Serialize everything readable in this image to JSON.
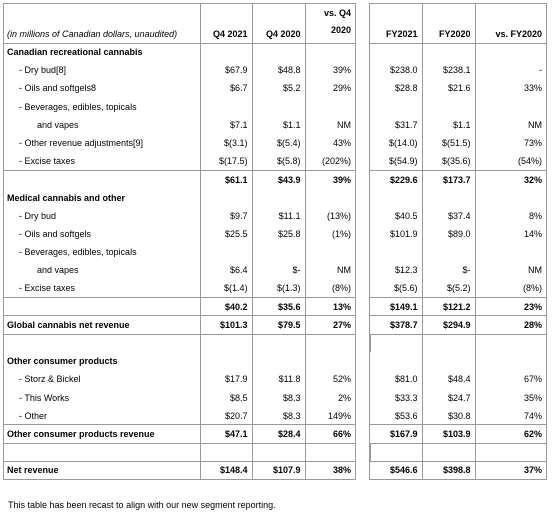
{
  "table": {
    "header": [
      "(in millions of Canadian dollars, unaudited)",
      "Q4 2021",
      "Q4 2020",
      "vs. Q4 2020",
      "FY2021",
      "FY2020",
      "vs. FY2020"
    ],
    "rows": [
      [
        "Canadian recreational cannabis"
      ],
      [
        "- Dry bud[8]",
        "$67.9",
        "$48.8",
        "39%",
        "$238.0",
        "$238.1",
        "-"
      ],
      [
        "- Oils and softgels8",
        "$6.7",
        "$5.2",
        "29%",
        "$28.8",
        "$21.6",
        "33%"
      ],
      [
        "- Beverages, edibles, topicals"
      ],
      [
        "and vapes",
        "$7.1",
        "$1.1",
        "NM",
        "$31.7",
        "$1.1",
        "NM"
      ],
      [
        "- Other revenue adjustments[9]",
        "$(3.1)",
        "$(5.4)",
        "43%",
        "$(14.0)",
        "$(51.5)",
        "73%"
      ],
      [
        "- Excise taxes",
        "$(17.5)",
        "$(5.8)",
        "(202%)",
        "$(54.9)",
        "$(35.6)",
        "(54%)"
      ],
      [
        "",
        "$61.1",
        "$43.9",
        "39%",
        "$229.6",
        "$173.7",
        "32%"
      ],
      [
        "Medical cannabis and other"
      ],
      [
        "- Dry bud",
        "$9.7",
        "$11.1",
        "(13%)",
        "$40.5",
        "$37.4",
        "8%"
      ],
      [
        "- Oils and softgels",
        "$25.5",
        "$25.8",
        "(1%)",
        "$101.9",
        "$89.0",
        "14%"
      ],
      [
        "- Beverages, edibles, topicals"
      ],
      [
        "and vapes",
        "$6.4",
        "$-",
        "NM",
        "$12.3",
        "$-",
        "NM"
      ],
      [
        "- Excise taxes",
        "$(1.4)",
        "$(1.3)",
        "(8%)",
        "$(5.6)",
        "$(5.2)",
        "(8%)"
      ],
      [
        "",
        "$40.2",
        "$35.6",
        "13%",
        "$149.1",
        "$121.2",
        "23%"
      ],
      [
        "Global cannabis net revenue",
        "$101.3",
        "$79.5",
        "27%",
        "$378.7",
        "$294.9",
        "28%"
      ],
      [
        "Other consumer products"
      ],
      [
        "- Storz & Bickel",
        "$17.9",
        "$11.8",
        "52%",
        "$81.0",
        "$48.4",
        "67%"
      ],
      [
        "- This Works",
        "$8.5",
        "$8.3",
        "2%",
        "$33.3",
        "$24.7",
        "35%"
      ],
      [
        "- Other",
        "$20.7",
        "$8.3",
        "149%",
        "$53.6",
        "$30.8",
        "74%"
      ],
      [
        "Other consumer products revenue",
        "$47.1",
        "$28.4",
        "66%",
        "$167.9",
        "$103.9",
        "62%"
      ],
      [
        "Net revenue",
        "$148.4",
        "$107.9",
        "38%",
        "$546.6",
        "$398.8",
        "37%"
      ]
    ],
    "footnote": "This table has been recast to align with our new segment reporting."
  }
}
